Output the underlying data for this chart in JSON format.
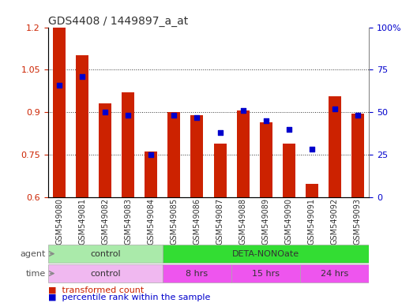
{
  "title": "GDS4408 / 1449897_a_at",
  "samples": [
    "GSM549080",
    "GSM549081",
    "GSM549082",
    "GSM549083",
    "GSM549084",
    "GSM549085",
    "GSM549086",
    "GSM549087",
    "GSM549088",
    "GSM549089",
    "GSM549090",
    "GSM549091",
    "GSM549092",
    "GSM549093"
  ],
  "transformed_count": [
    1.2,
    1.1,
    0.93,
    0.97,
    0.76,
    0.9,
    0.89,
    0.79,
    0.905,
    0.865,
    0.79,
    0.645,
    0.955,
    0.895
  ],
  "percentile_rank": [
    66,
    71,
    50,
    48,
    25,
    48,
    47,
    38,
    51,
    45,
    40,
    28,
    52,
    48
  ],
  "bar_color": "#cc2200",
  "dot_color": "#0000cc",
  "ylim_left": [
    0.6,
    1.2
  ],
  "ylim_right": [
    0,
    100
  ],
  "yticks_left": [
    0.6,
    0.75,
    0.9,
    1.05,
    1.2
  ],
  "ytick_labels_left": [
    "0.6",
    "0.75",
    "0.9",
    "1.05",
    "1.2"
  ],
  "yticks_right": [
    0,
    25,
    50,
    75,
    100
  ],
  "ytick_labels_right": [
    "0",
    "25",
    "50",
    "75",
    "100%"
  ],
  "agent_labels": [
    {
      "text": "control",
      "start": 0,
      "end": 4,
      "color": "#aaeaaa"
    },
    {
      "text": "DETA-NONOate",
      "start": 5,
      "end": 13,
      "color": "#33dd33"
    }
  ],
  "time_labels": [
    {
      "text": "control",
      "start": 0,
      "end": 4,
      "color": "#f0b8f0"
    },
    {
      "text": "8 hrs",
      "start": 5,
      "end": 7,
      "color": "#ee55ee"
    },
    {
      "text": "15 hrs",
      "start": 8,
      "end": 10,
      "color": "#ee55ee"
    },
    {
      "text": "24 hrs",
      "start": 11,
      "end": 13,
      "color": "#ee55ee"
    }
  ],
  "legend_bar_label": "transformed count",
  "legend_dot_label": "percentile rank within the sample",
  "bar_width": 0.55,
  "agent_label": "agent",
  "time_label": "time",
  "background_color": "#ffffff",
  "grid_color": "#333333",
  "tick_label_color_left": "#cc2200",
  "tick_label_color_right": "#0000cc",
  "label_row_color": "#cccccc"
}
